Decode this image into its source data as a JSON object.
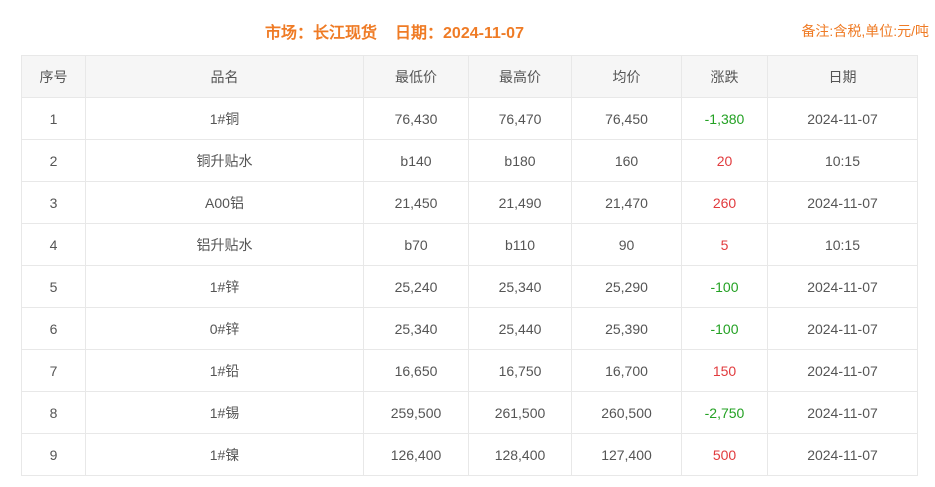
{
  "header": {
    "market": "市场：长江现货",
    "date": "日期：2024-11-07",
    "note": "备注:含税,单位:元/吨"
  },
  "colors": {
    "accent": "#ef7b25",
    "up": "#e13b3e",
    "down": "#23a123",
    "text": "#555555",
    "border": "#e8e8e8",
    "headerbg": "#f6f6f6"
  },
  "table": {
    "columns": [
      {
        "key": "index",
        "label": "序号"
      },
      {
        "key": "name",
        "label": "品名"
      },
      {
        "key": "low",
        "label": "最低价"
      },
      {
        "key": "high",
        "label": "最高价"
      },
      {
        "key": "avg",
        "label": "均价"
      },
      {
        "key": "change",
        "label": "涨跌"
      },
      {
        "key": "date",
        "label": "日期"
      }
    ],
    "rows": [
      {
        "index": "1",
        "name": "1#铜",
        "low": "76,430",
        "high": "76,470",
        "avg": "76,450",
        "change": "-1,380",
        "change_dir": "down",
        "date": "2024-11-07"
      },
      {
        "index": "2",
        "name": "铜升贴水",
        "low": "b140",
        "high": "b180",
        "avg": "160",
        "change": "20",
        "change_dir": "up",
        "date": "10:15"
      },
      {
        "index": "3",
        "name": "A00铝",
        "low": "21,450",
        "high": "21,490",
        "avg": "21,470",
        "change": "260",
        "change_dir": "up",
        "date": "2024-11-07"
      },
      {
        "index": "4",
        "name": "铝升贴水",
        "low": "b70",
        "high": "b110",
        "avg": "90",
        "change": "5",
        "change_dir": "up",
        "date": "10:15"
      },
      {
        "index": "5",
        "name": "1#锌",
        "low": "25,240",
        "high": "25,340",
        "avg": "25,290",
        "change": "-100",
        "change_dir": "down",
        "date": "2024-11-07"
      },
      {
        "index": "6",
        "name": "0#锌",
        "low": "25,340",
        "high": "25,440",
        "avg": "25,390",
        "change": "-100",
        "change_dir": "down",
        "date": "2024-11-07"
      },
      {
        "index": "7",
        "name": "1#铅",
        "low": "16,650",
        "high": "16,750",
        "avg": "16,700",
        "change": "150",
        "change_dir": "up",
        "date": "2024-11-07"
      },
      {
        "index": "8",
        "name": "1#锡",
        "low": "259,500",
        "high": "261,500",
        "avg": "260,500",
        "change": "-2,750",
        "change_dir": "down",
        "date": "2024-11-07"
      },
      {
        "index": "9",
        "name": "1#镍",
        "low": "126,400",
        "high": "128,400",
        "avg": "127,400",
        "change": "500",
        "change_dir": "up",
        "date": "2024-11-07"
      }
    ]
  }
}
